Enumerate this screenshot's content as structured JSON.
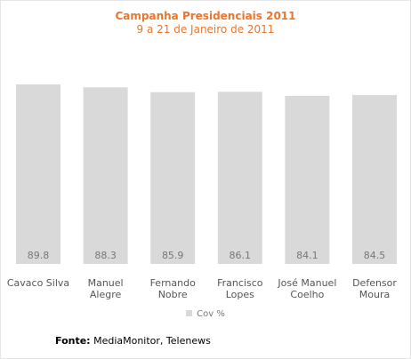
{
  "colors": {
    "title": "#e8772e",
    "bar": "#d9d9d9",
    "value_label": "#777777",
    "category_label": "#555555",
    "frame": "#e6e6e6"
  },
  "chart_data": {
    "type": "bar",
    "title": "Campanha Presidenciais 2011",
    "subtitle": "9 a 21 de Janeiro de 2011",
    "categories": [
      [
        "Cavaco Silva"
      ],
      [
        "Manuel",
        "Alegre"
      ],
      [
        "Fernando",
        "Nobre"
      ],
      [
        "Francisco",
        "Lopes"
      ],
      [
        "José Manuel",
        "Coelho"
      ],
      [
        "Defensor",
        "Moura"
      ]
    ],
    "series": [
      {
        "name": "Cov %",
        "values": [
          89.8,
          88.3,
          85.9,
          86.1,
          84.1,
          84.5
        ],
        "value_labels": [
          "89.8",
          "88.3",
          "85.9",
          "86.1",
          "84.1",
          "84.5"
        ]
      }
    ],
    "ylim": [
      0,
      100
    ],
    "grid": false,
    "legend": "bottom",
    "source_label": "Fonte:",
    "source_text": "MediaMonitor, Telenews"
  }
}
